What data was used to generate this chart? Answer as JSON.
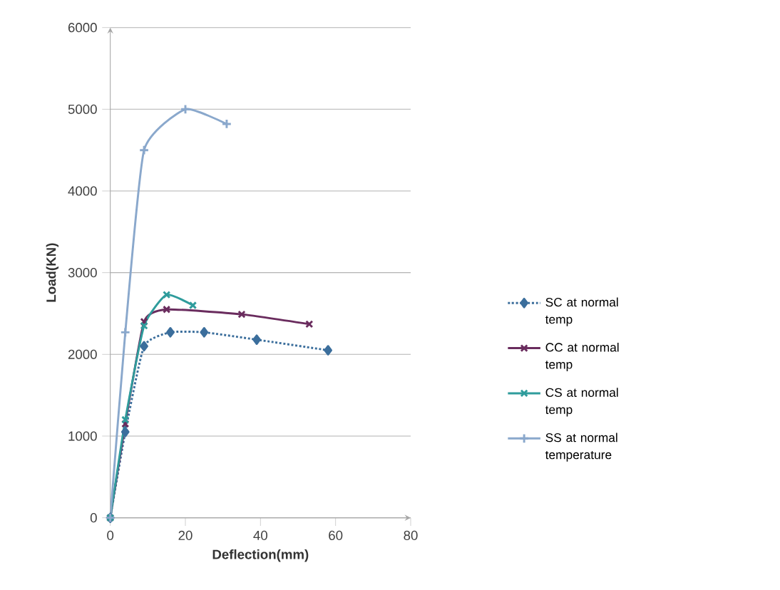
{
  "chart_data": {
    "type": "line",
    "xlabel": "Deflection(mm)",
    "ylabel": "Load(KN)",
    "xlim": [
      0,
      80
    ],
    "xticks": [
      0,
      20,
      40,
      60,
      80
    ],
    "ylim": [
      0,
      6000
    ],
    "yticks": [
      0,
      1000,
      2000,
      3000,
      4000,
      5000,
      6000
    ],
    "grid": "y",
    "legend": "right",
    "series": [
      {
        "name": "SC at normal temp",
        "color": "#3b6e9c",
        "marker": "diamond",
        "line_style": "dotted",
        "x": [
          0,
          4,
          9,
          16,
          25,
          39,
          58
        ],
        "values": [
          0,
          1050,
          2100,
          2270,
          2270,
          2180,
          2050
        ]
      },
      {
        "name": "CC at normal temp",
        "color": "#6a2c5e",
        "marker": "cross",
        "line_style": "solid",
        "x": [
          0,
          4,
          9,
          15,
          35,
          53
        ],
        "values": [
          0,
          1150,
          2400,
          2550,
          2490,
          2370
        ]
      },
      {
        "name": "CS at normal temp",
        "color": "#2f9c9c",
        "marker": "cross",
        "line_style": "solid",
        "x": [
          0,
          4,
          9,
          15,
          22
        ],
        "values": [
          0,
          1200,
          2350,
          2730,
          2600
        ]
      },
      {
        "name": "SS at normal temperature",
        "color": "#8aa8cc",
        "marker": "plus",
        "line_style": "solid",
        "x": [
          0,
          4,
          9,
          20,
          31
        ],
        "values": [
          0,
          2270,
          4500,
          5000,
          4820
        ]
      }
    ]
  }
}
